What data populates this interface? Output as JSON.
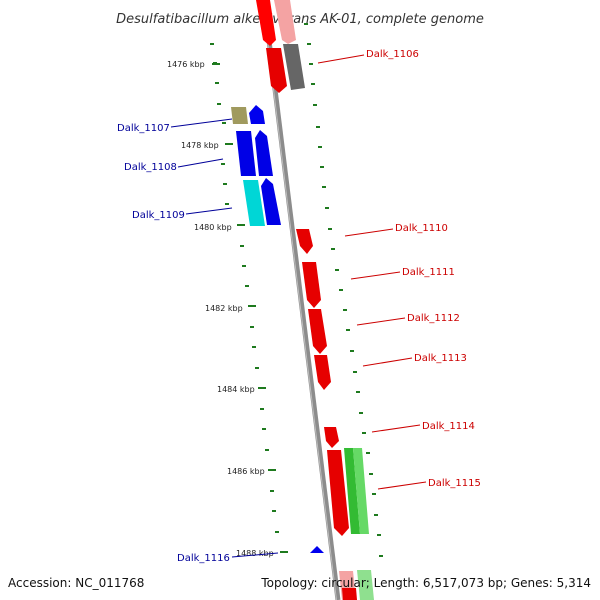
{
  "header": {
    "title": "Desulfatibacillum alkenivorans AK-01, complete genome"
  },
  "footer": {
    "accession": "Accession: NC_011768",
    "summary": "Topology: circular; Length: 6,517,073 bp; Genes: 5,314"
  },
  "scale_labels": [
    "1476 kbp",
    "1478 kbp",
    "1480 kbp",
    "1482 kbp",
    "1484 kbp",
    "1486 kbp",
    "1488 kbp"
  ],
  "colors": {
    "backbone": "#8c8c8c",
    "forward_label": "#cc0000",
    "reverse_label": "#000099",
    "ruler": "#1e7a1e"
  },
  "gene_labels": [
    {
      "name": "Dalk_1106",
      "strand": "forward"
    },
    {
      "name": "Dalk_1107",
      "strand": "reverse"
    },
    {
      "name": "Dalk_1108",
      "strand": "reverse"
    },
    {
      "name": "Dalk_1109",
      "strand": "reverse"
    },
    {
      "name": "Dalk_1110",
      "strand": "forward"
    },
    {
      "name": "Dalk_1111",
      "strand": "forward"
    },
    {
      "name": "Dalk_1112",
      "strand": "forward"
    },
    {
      "name": "Dalk_1113",
      "strand": "forward"
    },
    {
      "name": "Dalk_1114",
      "strand": "forward"
    },
    {
      "name": "Dalk_1115",
      "strand": "forward"
    },
    {
      "name": "Dalk_1116",
      "strand": "reverse"
    }
  ]
}
